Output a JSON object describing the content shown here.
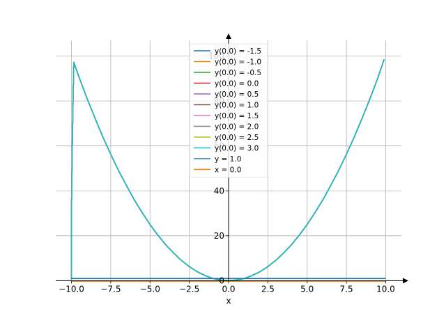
{
  "chart_data": {
    "type": "line",
    "title": "",
    "xlabel": "x",
    "ylabel": "",
    "xlim": [
      -11.0,
      11.0
    ],
    "ylim": [
      -0.5,
      107
    ],
    "grid": true,
    "legend_position": "top-center",
    "xticks": [
      -10,
      -7.5,
      -5,
      -2.5,
      0,
      2.5,
      5,
      7.5,
      10
    ],
    "xtick_labels": [
      "−10.0",
      "−7.5",
      "−5.0",
      "−2.5",
      "0.0",
      "2.5",
      "5.0",
      "7.5",
      "10.0"
    ],
    "yticks": [
      0,
      20,
      40,
      60,
      80,
      100
    ],
    "ytick_labels": [
      "0",
      "20",
      "40",
      "60",
      "80",
      "100"
    ],
    "series": [
      {
        "name": "y(0.0) = -1.5",
        "color": "#1f77b4"
      },
      {
        "name": "y(0.0) = -1.0",
        "color": "#ff7f0e"
      },
      {
        "name": "y(0.0) = -0.5",
        "color": "#2ca02c"
      },
      {
        "name": "y(0.0) = 0.0",
        "color": "#d62728"
      },
      {
        "name": "y(0.0) = 0.5",
        "color": "#9467bd"
      },
      {
        "name": "y(0.0) = 1.0",
        "color": "#8c564b"
      },
      {
        "name": "y(0.0) = 1.5",
        "color": "#e377c2"
      },
      {
        "name": "y(0.0) = 2.0",
        "color": "#7f7f7f"
      },
      {
        "name": "y(0.0) = 2.5",
        "color": "#bcbd22"
      },
      {
        "name": "y(0.0) = 3.0",
        "color": "#17becf"
      },
      {
        "name": "y = 1.0",
        "color": "#1f77b4"
      },
      {
        "name": "x = 0.0",
        "color": "#ff7f0e"
      }
    ],
    "curve_points": [
      [
        -10.0,
        0.5
      ],
      [
        -10.0,
        10
      ],
      [
        -10.0,
        30
      ],
      [
        -9.95,
        60
      ],
      [
        -9.9,
        80
      ],
      [
        -9.85,
        97.2
      ],
      [
        -9.5,
        90.3
      ],
      [
        -9.0,
        81
      ],
      [
        -8.5,
        72.3
      ],
      [
        -8.0,
        64
      ],
      [
        -7.5,
        56.3
      ],
      [
        -7.0,
        49
      ],
      [
        -6.5,
        42.3
      ],
      [
        -6.0,
        36
      ],
      [
        -5.5,
        30.3
      ],
      [
        -5.0,
        25
      ],
      [
        -4.5,
        20.3
      ],
      [
        -4.0,
        16
      ],
      [
        -3.5,
        12.3
      ],
      [
        -3.0,
        9
      ],
      [
        -2.5,
        6.3
      ],
      [
        -2.0,
        4
      ],
      [
        -1.5,
        2.3
      ],
      [
        -1.0,
        1
      ],
      [
        -0.5,
        0.3
      ],
      [
        0.0,
        0.0
      ],
      [
        0.5,
        0.3
      ],
      [
        1.0,
        1
      ],
      [
        1.5,
        2.3
      ],
      [
        2.0,
        4
      ],
      [
        2.5,
        6.3
      ],
      [
        3.0,
        9
      ],
      [
        3.5,
        12.3
      ],
      [
        4.0,
        16
      ],
      [
        4.5,
        20.3
      ],
      [
        5.0,
        25
      ],
      [
        5.5,
        30.3
      ],
      [
        6.0,
        36
      ],
      [
        6.5,
        42.3
      ],
      [
        7.0,
        49
      ],
      [
        7.5,
        56.3
      ],
      [
        8.0,
        64
      ],
      [
        8.5,
        72.3
      ],
      [
        9.0,
        81
      ],
      [
        9.5,
        90.3
      ],
      [
        9.9,
        98.5
      ]
    ],
    "hline_y": 1.0,
    "vline_x": 0.0
  }
}
